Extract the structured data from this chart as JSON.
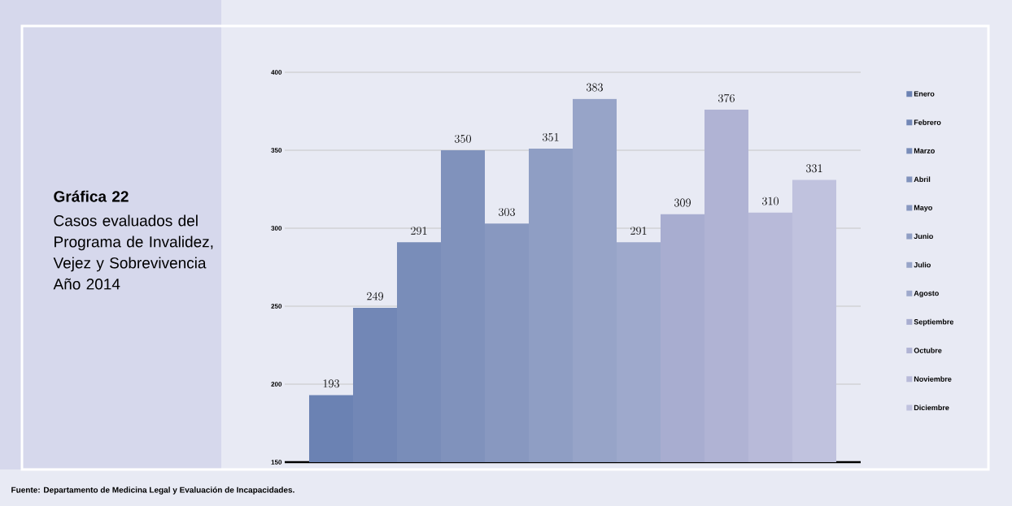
{
  "chart_data": {
    "type": "bar",
    "title": "Gráfica 22",
    "subtitle": "Casos evaluados del Programa de Invalidez, Vejez y Sobrevivencia Año 2014",
    "categories": [
      null
    ],
    "series": [
      {
        "name": "Enero",
        "color": "#6b82b3",
        "values": [
          193
        ]
      },
      {
        "name": "Febrero",
        "color": "#7287b6",
        "values": [
          249
        ]
      },
      {
        "name": "Marzo",
        "color": "#798db9",
        "values": [
          291
        ]
      },
      {
        "name": "Abril",
        "color": "#8092bc",
        "values": [
          350
        ]
      },
      {
        "name": "Mayo",
        "color": "#8898c0",
        "values": [
          303
        ]
      },
      {
        "name": "Junio",
        "color": "#8f9ec4",
        "values": [
          351
        ]
      },
      {
        "name": "Julio",
        "color": "#97a4c8",
        "values": [
          383
        ]
      },
      {
        "name": "Agosto",
        "color": "#9ea9cc",
        "values": [
          291
        ]
      },
      {
        "name": "Septiembre",
        "color": "#a8add0",
        "values": [
          309
        ]
      },
      {
        "name": "Octubre",
        "color": "#b0b3d4",
        "values": [
          376
        ]
      },
      {
        "name": "Noviembre",
        "color": "#b8bad9",
        "values": [
          310
        ]
      },
      {
        "name": "Diciembre",
        "color": "#c0c2de",
        "values": [
          331
        ]
      }
    ],
    "ylim": [
      150,
      400
    ],
    "yticks": [
      150,
      200,
      250,
      300,
      350,
      400
    ],
    "data_labels": true,
    "grid": "y",
    "legend": "right",
    "annotations": [
      "Fuente: Departamento de Medicina Legal y Evaluación de Incapacidades."
    ]
  }
}
